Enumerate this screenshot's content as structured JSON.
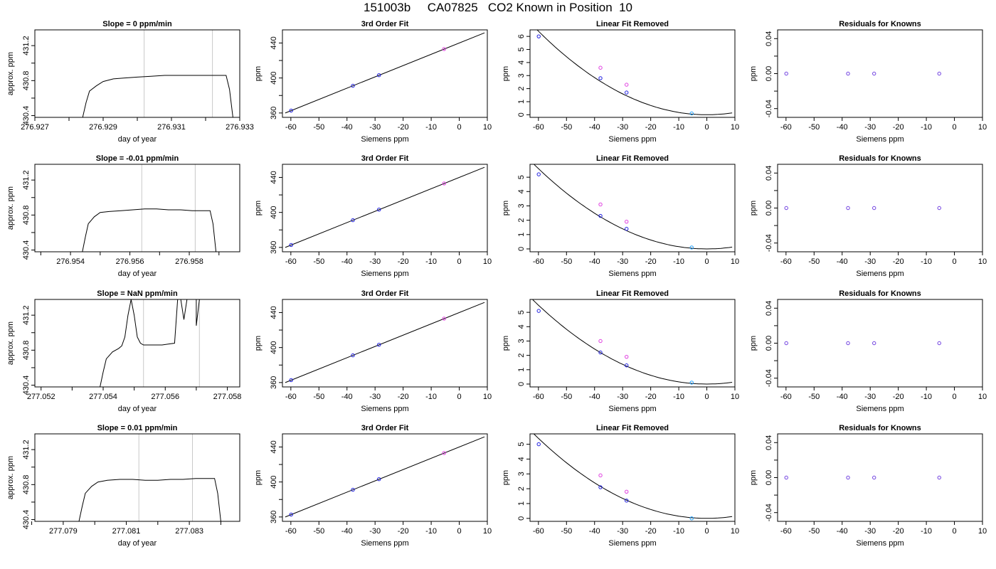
{
  "header": {
    "title": "151003b     CA07825   CO2 Known in Position  10"
  },
  "labels": {
    "siemens": "Siemens ppm",
    "ppm": "ppm",
    "approx": "approx. ppm",
    "doy": "day of year"
  },
  "colors": {
    "line": "#000000",
    "frame": "#000000",
    "marker_lines": "#c8c8c8",
    "point_blue": "#2020e0",
    "point_magenta": "#e040e0",
    "point_cyan": "#20a0ff",
    "point_purple": "#7040e0"
  },
  "chart_data": [
    {
      "type": "line",
      "panel": "trace",
      "row": 0,
      "title": "Slope =  0  ppm/min",
      "xlabel": "day of year",
      "ylabel": "approx. ppm",
      "xlim": [
        276.927,
        276.933
      ],
      "ylim": [
        430.38,
        431.38
      ],
      "xticks": [
        276.927,
        276.928,
        276.929,
        276.93,
        276.931,
        276.932,
        276.933
      ],
      "xtick_labels": [
        "276.927",
        "",
        "276.929",
        "",
        "276.931",
        "",
        "276.933"
      ],
      "yticks": [
        430.4,
        430.6,
        430.8,
        431.0,
        431.2
      ],
      "ytick_labels": [
        "430.4",
        "",
        "430.8",
        "",
        "431.2"
      ],
      "markers": [
        276.9302,
        276.9322
      ],
      "x": [
        276.9284,
        276.9285,
        276.9286,
        276.9288,
        276.929,
        276.9293,
        276.9296,
        276.93,
        276.9304,
        276.9308,
        276.9312,
        276.9316,
        276.932,
        276.9324,
        276.9326,
        276.9327,
        276.9328
      ],
      "y": [
        430.38,
        430.55,
        430.68,
        430.74,
        430.79,
        430.82,
        430.83,
        430.84,
        430.85,
        430.86,
        430.86,
        430.86,
        430.86,
        430.86,
        430.86,
        430.7,
        430.38
      ]
    },
    {
      "type": "line",
      "panel": "fit",
      "row": 0,
      "title": "3rd Order Fit",
      "xlabel": "Siemens ppm",
      "ylabel": "ppm",
      "xlim": [
        -63,
        10
      ],
      "ylim": [
        355,
        455
      ],
      "xticks": [
        -60,
        -50,
        -40,
        -30,
        -20,
        -10,
        0,
        10
      ],
      "yticks": [
        360,
        380,
        400,
        420,
        440
      ],
      "ytick_labels": [
        "360",
        "",
        "400",
        "",
        "440"
      ],
      "curve_x": [
        -62,
        9
      ],
      "curve_y": [
        360.0,
        451.6
      ],
      "points": [
        {
          "x": -59.9,
          "y": 362.8,
          "color": "point_blue"
        },
        {
          "x": -37.9,
          "y": 391.1,
          "color": "point_blue"
        },
        {
          "x": -28.6,
          "y": 403.2,
          "color": "point_blue"
        },
        {
          "x": -5.4,
          "y": 433.1,
          "color": "point_magenta"
        }
      ]
    },
    {
      "type": "scatter",
      "panel": "linfit",
      "row": 0,
      "title": "Linear Fit Removed",
      "xlabel": "Siemens ppm",
      "ylabel": "ppm",
      "xlim": [
        -63,
        10
      ],
      "ylim": [
        -0.2,
        6.5
      ],
      "xticks": [
        -60,
        -50,
        -40,
        -30,
        -20,
        -10,
        0,
        10
      ],
      "yticks": [
        0,
        1,
        2,
        3,
        4,
        5,
        6
      ],
      "curve_scale": 6.4,
      "points": [
        {
          "x": -59.9,
          "y": 6.0,
          "color": "point_blue"
        },
        {
          "x": -37.9,
          "y": 2.8,
          "color": "point_blue"
        },
        {
          "x": -28.6,
          "y": 1.7,
          "color": "point_blue"
        },
        {
          "x": -5.4,
          "y": 0.1,
          "color": "point_cyan"
        },
        {
          "x": -37.9,
          "y": 3.6,
          "color": "point_magenta"
        },
        {
          "x": -28.6,
          "y": 2.3,
          "color": "point_magenta"
        }
      ]
    },
    {
      "type": "scatter",
      "panel": "resid",
      "row": 0,
      "title": "Residuals for Knowns",
      "xlabel": "Siemens ppm",
      "ylabel": "ppm",
      "xlim": [
        -63,
        10
      ],
      "ylim": [
        -0.05,
        0.05
      ],
      "xticks": [
        -60,
        -50,
        -40,
        -30,
        -20,
        -10,
        0,
        10
      ],
      "yticks": [
        -0.04,
        -0.02,
        0.0,
        0.02,
        0.04
      ],
      "ytick_labels": [
        "-0.04",
        "",
        "0.00",
        "",
        "0.04"
      ],
      "points": [
        {
          "x": -59.9,
          "y": 0.0,
          "color": "point_purple"
        },
        {
          "x": -37.9,
          "y": 0.0,
          "color": "point_purple"
        },
        {
          "x": -28.6,
          "y": 0.0,
          "color": "point_purple"
        },
        {
          "x": -5.4,
          "y": 0.0,
          "color": "point_purple"
        }
      ]
    },
    {
      "type": "line",
      "panel": "trace",
      "row": 1,
      "title": "Slope =  -0.01  ppm/min",
      "xlabel": "day of year",
      "ylabel": "approx. ppm",
      "xlim": [
        276.9528,
        276.9597
      ],
      "ylim": [
        430.38,
        431.38
      ],
      "xticks": [
        276.953,
        276.954,
        276.955,
        276.956,
        276.957,
        276.958,
        276.959
      ],
      "xtick_labels": [
        "",
        "276.954",
        "",
        "276.956",
        "",
        "276.958",
        ""
      ],
      "yticks": [
        430.4,
        430.6,
        430.8,
        431.0,
        431.2
      ],
      "ytick_labels": [
        "430.4",
        "",
        "430.8",
        "",
        "431.2"
      ],
      "markers": [
        276.9564,
        276.9582
      ],
      "x": [
        276.9544,
        276.9545,
        276.9546,
        276.9548,
        276.955,
        276.9553,
        276.9557,
        276.9561,
        276.9565,
        276.9569,
        276.9573,
        276.9577,
        276.9581,
        276.9585,
        276.9587,
        276.9588,
        276.9589
      ],
      "y": [
        430.38,
        430.55,
        430.7,
        430.78,
        430.83,
        430.84,
        430.85,
        430.86,
        430.87,
        430.87,
        430.86,
        430.86,
        430.85,
        430.85,
        430.85,
        430.7,
        430.38
      ]
    },
    {
      "type": "line",
      "panel": "fit",
      "row": 1,
      "title": "3rd Order Fit",
      "xlabel": "Siemens ppm",
      "ylabel": "ppm",
      "xlim": [
        -63,
        10
      ],
      "ylim": [
        355,
        455
      ],
      "xticks": [
        -60,
        -50,
        -40,
        -30,
        -20,
        -10,
        0,
        10
      ],
      "yticks": [
        360,
        380,
        400,
        420,
        440
      ],
      "ytick_labels": [
        "360",
        "",
        "400",
        "",
        "440"
      ],
      "curve_x": [
        -62,
        9
      ],
      "curve_y": [
        360.0,
        451.6
      ],
      "points": [
        {
          "x": -59.9,
          "y": 362.8,
          "color": "point_blue"
        },
        {
          "x": -37.9,
          "y": 391.1,
          "color": "point_blue"
        },
        {
          "x": -28.6,
          "y": 403.2,
          "color": "point_blue"
        },
        {
          "x": -5.4,
          "y": 433.1,
          "color": "point_magenta"
        }
      ]
    },
    {
      "type": "scatter",
      "panel": "linfit",
      "row": 1,
      "title": "Linear Fit Removed",
      "xlabel": "Siemens ppm",
      "ylabel": "ppm",
      "xlim": [
        -63,
        10
      ],
      "ylim": [
        -0.2,
        5.9
      ],
      "xticks": [
        -60,
        -50,
        -40,
        -30,
        -20,
        -10,
        0,
        10
      ],
      "yticks": [
        0,
        1,
        2,
        3,
        4,
        5
      ],
      "curve_scale": 5.6,
      "points": [
        {
          "x": -59.9,
          "y": 5.2,
          "color": "point_blue"
        },
        {
          "x": -37.9,
          "y": 2.3,
          "color": "point_blue"
        },
        {
          "x": -28.6,
          "y": 1.4,
          "color": "point_blue"
        },
        {
          "x": -5.4,
          "y": 0.1,
          "color": "point_cyan"
        },
        {
          "x": -37.9,
          "y": 3.1,
          "color": "point_magenta"
        },
        {
          "x": -28.6,
          "y": 1.9,
          "color": "point_magenta"
        }
      ]
    },
    {
      "type": "scatter",
      "panel": "resid",
      "row": 1,
      "title": "Residuals for Knowns",
      "xlabel": "Siemens ppm",
      "ylabel": "ppm",
      "xlim": [
        -63,
        10
      ],
      "ylim": [
        -0.05,
        0.05
      ],
      "xticks": [
        -60,
        -50,
        -40,
        -30,
        -20,
        -10,
        0,
        10
      ],
      "yticks": [
        -0.04,
        -0.02,
        0.0,
        0.02,
        0.04
      ],
      "ytick_labels": [
        "-0.04",
        "",
        "0.00",
        "",
        "0.04"
      ],
      "points": [
        {
          "x": -59.9,
          "y": 0.0,
          "color": "point_purple"
        },
        {
          "x": -37.9,
          "y": 0.0,
          "color": "point_purple"
        },
        {
          "x": -28.6,
          "y": 0.0,
          "color": "point_purple"
        },
        {
          "x": -5.4,
          "y": 0.0,
          "color": "point_purple"
        }
      ]
    },
    {
      "type": "line",
      "panel": "trace",
      "row": 2,
      "title": "Slope =  NaN  ppm/min",
      "xlabel": "day of year",
      "ylabel": "approx. ppm",
      "xlim": [
        277.0518,
        277.0584
      ],
      "ylim": [
        430.38,
        431.38
      ],
      "xticks": [
        277.052,
        277.053,
        277.054,
        277.055,
        277.056,
        277.057,
        277.058
      ],
      "xtick_labels": [
        "277.052",
        "",
        "277.054",
        "",
        "277.056",
        "",
        "277.058"
      ],
      "yticks": [
        430.4,
        430.6,
        430.8,
        431.0,
        431.2
      ],
      "ytick_labels": [
        "430.4",
        "",
        "430.8",
        "",
        "431.2"
      ],
      "markers": [
        277.0553,
        277.0571
      ],
      "x": [
        277.0539,
        277.054,
        277.0541,
        277.0543,
        277.0545,
        277.0546,
        277.0547,
        277.0548,
        277.0549,
        277.0549,
        277.055,
        277.0551,
        277.0552,
        277.0553,
        277.0556,
        277.0559,
        277.0561,
        277.0563,
        277.0564,
        277.0565,
        277.0566,
        277.0567,
        277.0567,
        277.0568,
        277.0569,
        277.057,
        277.057,
        277.0571
      ],
      "y": [
        430.38,
        430.55,
        430.7,
        430.78,
        430.82,
        430.85,
        430.95,
        431.2,
        431.38,
        431.38,
        431.2,
        430.95,
        430.88,
        430.86,
        430.86,
        430.86,
        430.87,
        430.88,
        431.38,
        431.38,
        431.15,
        431.38,
        431.38,
        431.38,
        431.38,
        431.38,
        431.08,
        431.38
      ]
    },
    {
      "type": "line",
      "panel": "fit",
      "row": 2,
      "title": "3rd Order Fit",
      "xlabel": "Siemens ppm",
      "ylabel": "ppm",
      "xlim": [
        -63,
        10
      ],
      "ylim": [
        355,
        455
      ],
      "xticks": [
        -60,
        -50,
        -40,
        -30,
        -20,
        -10,
        0,
        10
      ],
      "yticks": [
        360,
        380,
        400,
        420,
        440
      ],
      "ytick_labels": [
        "360",
        "",
        "400",
        "",
        "440"
      ],
      "curve_x": [
        -62,
        9
      ],
      "curve_y": [
        360.0,
        451.6
      ],
      "points": [
        {
          "x": -59.9,
          "y": 362.8,
          "color": "point_blue"
        },
        {
          "x": -37.9,
          "y": 391.1,
          "color": "point_blue"
        },
        {
          "x": -28.6,
          "y": 403.2,
          "color": "point_blue"
        },
        {
          "x": -5.4,
          "y": 433.1,
          "color": "point_magenta"
        }
      ]
    },
    {
      "type": "scatter",
      "panel": "linfit",
      "row": 2,
      "title": "Linear Fit Removed",
      "xlabel": "Siemens ppm",
      "ylabel": "ppm",
      "xlim": [
        -63,
        10
      ],
      "ylim": [
        -0.2,
        5.9
      ],
      "xticks": [
        -60,
        -50,
        -40,
        -30,
        -20,
        -10,
        0,
        10
      ],
      "yticks": [
        0,
        1,
        2,
        3,
        4,
        5
      ],
      "curve_scale": 5.5,
      "points": [
        {
          "x": -59.9,
          "y": 5.1,
          "color": "point_blue"
        },
        {
          "x": -37.9,
          "y": 2.2,
          "color": "point_blue"
        },
        {
          "x": -28.6,
          "y": 1.3,
          "color": "point_blue"
        },
        {
          "x": -5.4,
          "y": 0.1,
          "color": "point_cyan"
        },
        {
          "x": -37.9,
          "y": 3.0,
          "color": "point_magenta"
        },
        {
          "x": -28.6,
          "y": 1.9,
          "color": "point_magenta"
        }
      ]
    },
    {
      "type": "scatter",
      "panel": "resid",
      "row": 2,
      "title": "Residuals for Knowns",
      "xlabel": "Siemens ppm",
      "ylabel": "ppm",
      "xlim": [
        -63,
        10
      ],
      "ylim": [
        -0.05,
        0.05
      ],
      "xticks": [
        -60,
        -50,
        -40,
        -30,
        -20,
        -10,
        0,
        10
      ],
      "yticks": [
        -0.04,
        -0.02,
        0.0,
        0.02,
        0.04
      ],
      "ytick_labels": [
        "-0.04",
        "",
        "0.00",
        "",
        "0.04"
      ],
      "points": [
        {
          "x": -59.9,
          "y": 0.0,
          "color": "point_purple"
        },
        {
          "x": -37.9,
          "y": 0.0,
          "color": "point_purple"
        },
        {
          "x": -28.6,
          "y": 0.0,
          "color": "point_purple"
        },
        {
          "x": -5.4,
          "y": 0.0,
          "color": "point_purple"
        }
      ]
    },
    {
      "type": "line",
      "panel": "trace",
      "row": 3,
      "title": "Slope =  0.01  ppm/min",
      "xlabel": "day of year",
      "ylabel": "approx. ppm",
      "xlim": [
        277.0781,
        277.0846
      ],
      "ylim": [
        430.38,
        431.38
      ],
      "xticks": [
        277.078,
        277.079,
        277.08,
        277.081,
        277.082,
        277.083,
        277.084
      ],
      "xtick_labels": [
        "",
        "277.079",
        "",
        "277.081",
        "",
        "277.083",
        ""
      ],
      "yticks": [
        430.4,
        430.6,
        430.8,
        431.0,
        431.2
      ],
      "ytick_labels": [
        "430.4",
        "",
        "430.8",
        "",
        "431.2"
      ],
      "markers": [
        277.0814,
        277.0831
      ],
      "x": [
        277.0795,
        277.0796,
        277.0797,
        277.0799,
        277.0801,
        277.0804,
        277.0808,
        277.0812,
        277.0816,
        277.082,
        277.0824,
        277.0828,
        277.0832,
        277.0836,
        277.0838,
        277.0839,
        277.084
      ],
      "y": [
        430.38,
        430.55,
        430.7,
        430.78,
        430.83,
        430.85,
        430.86,
        430.86,
        430.85,
        430.85,
        430.86,
        430.86,
        430.87,
        430.87,
        430.87,
        430.7,
        430.38
      ]
    },
    {
      "type": "line",
      "panel": "fit",
      "row": 3,
      "title": "3rd Order Fit",
      "xlabel": "Siemens ppm",
      "ylabel": "ppm",
      "xlim": [
        -63,
        10
      ],
      "ylim": [
        355,
        455
      ],
      "xticks": [
        -60,
        -50,
        -40,
        -30,
        -20,
        -10,
        0,
        10
      ],
      "yticks": [
        360,
        380,
        400,
        420,
        440
      ],
      "ytick_labels": [
        "360",
        "",
        "400",
        "",
        "440"
      ],
      "curve_x": [
        -62,
        9
      ],
      "curve_y": [
        360.0,
        451.6
      ],
      "points": [
        {
          "x": -59.9,
          "y": 362.8,
          "color": "point_blue"
        },
        {
          "x": -37.9,
          "y": 391.1,
          "color": "point_blue"
        },
        {
          "x": -28.6,
          "y": 403.2,
          "color": "point_blue"
        },
        {
          "x": -5.4,
          "y": 433.1,
          "color": "point_magenta"
        }
      ]
    },
    {
      "type": "scatter",
      "panel": "linfit",
      "row": 3,
      "title": "Linear Fit Removed",
      "xlabel": "Siemens ppm",
      "ylabel": "ppm",
      "xlim": [
        -63,
        10
      ],
      "ylim": [
        -0.2,
        5.7
      ],
      "xticks": [
        -60,
        -50,
        -40,
        -30,
        -20,
        -10,
        0,
        10
      ],
      "yticks": [
        0,
        1,
        2,
        3,
        4,
        5
      ],
      "curve_scale": 5.4,
      "points": [
        {
          "x": -59.9,
          "y": 5.0,
          "color": "point_blue"
        },
        {
          "x": -37.9,
          "y": 2.1,
          "color": "point_blue"
        },
        {
          "x": -28.6,
          "y": 1.2,
          "color": "point_blue"
        },
        {
          "x": -5.4,
          "y": 0.0,
          "color": "point_cyan"
        },
        {
          "x": -37.9,
          "y": 2.9,
          "color": "point_magenta"
        },
        {
          "x": -28.6,
          "y": 1.8,
          "color": "point_magenta"
        }
      ]
    },
    {
      "type": "scatter",
      "panel": "resid",
      "row": 3,
      "title": "Residuals for Knowns",
      "xlabel": "Siemens ppm",
      "ylabel": "ppm",
      "xlim": [
        -63,
        10
      ],
      "ylim": [
        -0.05,
        0.05
      ],
      "xticks": [
        -60,
        -50,
        -40,
        -30,
        -20,
        -10,
        0,
        10
      ],
      "yticks": [
        -0.04,
        -0.02,
        0.0,
        0.02,
        0.04
      ],
      "ytick_labels": [
        "-0.04",
        "",
        "0.00",
        "",
        "0.04"
      ],
      "points": [
        {
          "x": -59.9,
          "y": 0.0,
          "color": "point_purple"
        },
        {
          "x": -37.9,
          "y": 0.0,
          "color": "point_purple"
        },
        {
          "x": -28.6,
          "y": 0.0,
          "color": "point_purple"
        },
        {
          "x": -5.4,
          "y": 0.0,
          "color": "point_purple"
        }
      ]
    }
  ]
}
